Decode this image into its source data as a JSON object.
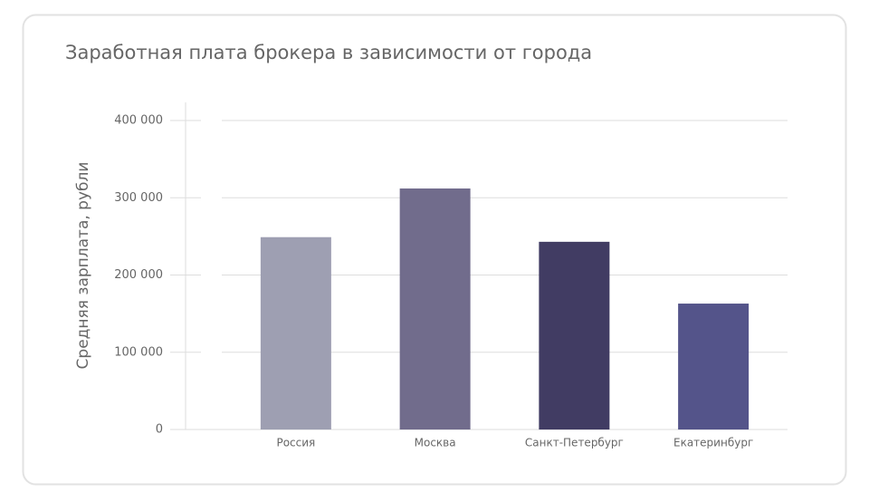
{
  "chart_data": {
    "type": "bar",
    "title": "Заработная плата брокера в зависимости от города",
    "y_label": "Средняя зарплата, рубли",
    "categories": [
      "Россия",
      "Москва",
      "Санкт-Петербург",
      "Екатеринбург"
    ],
    "values": [
      249000,
      312000,
      243000,
      163000
    ],
    "colors": [
      "#9e9fb2",
      "#716c8c",
      "#413c63",
      "#54548a"
    ],
    "ylim": [
      0,
      400000
    ],
    "yticks": [
      0,
      {
        "value": 100000,
        "label": "100 000"
      },
      {
        "value": 200000,
        "label": "200 000"
      },
      {
        "value": 300000,
        "label": "300 000"
      },
      {
        "value": 400000,
        "label": "400 000"
      }
    ],
    "grid": true
  }
}
